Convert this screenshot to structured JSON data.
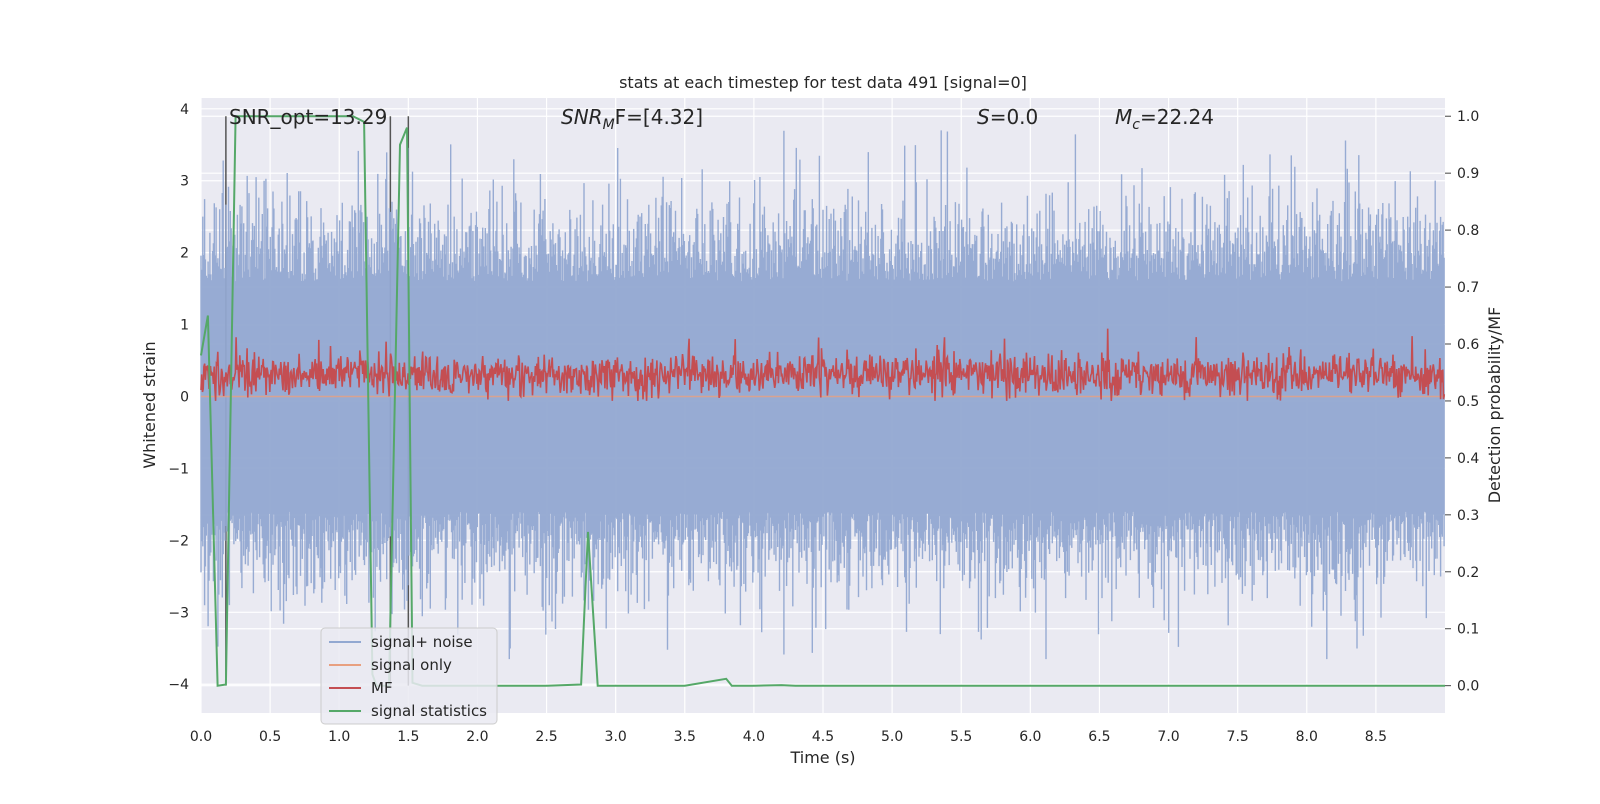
{
  "chart_data": {
    "type": "line",
    "title": "stats at each timestep for test data 491 [signal=0]",
    "xlabel": "Time (s)",
    "ylabel_left": "Whitened strain",
    "ylabel_right": "Detection probability/MF",
    "xlim": [
      0.0,
      9.0
    ],
    "ylim_left": [
      -4.4,
      4.15
    ],
    "ylim_right": [
      -0.048,
      1.032
    ],
    "xticks": [
      "0.0",
      "0.5",
      "1.0",
      "1.5",
      "2.0",
      "2.5",
      "3.0",
      "3.5",
      "4.0",
      "4.5",
      "5.0",
      "5.5",
      "6.0",
      "6.5",
      "7.0",
      "7.5",
      "8.0",
      "8.5"
    ],
    "yticks_left": [
      "−4",
      "−3",
      "−2",
      "−1",
      "0",
      "1",
      "2",
      "3",
      "4"
    ],
    "yticks_right": [
      "0.0",
      "0.1",
      "0.2",
      "0.3",
      "0.4",
      "0.5",
      "0.6",
      "0.7",
      "0.8",
      "0.9",
      "1.0"
    ],
    "grid": true,
    "legend_position": "lower-left",
    "annotations": {
      "snr_opt": "SNR_opt=13.29",
      "snr_mf_main": "SNR",
      "snr_mf_sub": "M",
      "snr_mf_rest": "F=[4.32]",
      "s_italic": "S",
      "s_rest": "=0.0",
      "mc_main": "M",
      "mc_sub": "c",
      "mc_rest": "=22.24"
    },
    "vertical_markers_x": [
      0.18,
      1.37,
      1.5
    ],
    "series": [
      {
        "name": "signal+ noise",
        "color": "#92a8d1",
        "axis": "left",
        "description_values": "whitened strain noise, approx. range -3.6 to 3.7"
      },
      {
        "name": "signal only",
        "color": "#e8a080",
        "axis": "left",
        "values": "zero"
      },
      {
        "name": "MF",
        "color": "#c44e52",
        "axis": "right",
        "range": [
          0.5,
          0.64
        ]
      },
      {
        "name": "signal statistics",
        "color": "#55a868",
        "axis": "right",
        "x": [
          0.0,
          0.05,
          0.12,
          0.18,
          0.25,
          1.0,
          1.1,
          1.18,
          1.24,
          1.27,
          1.36,
          1.44,
          1.49,
          1.53,
          1.6,
          2.0,
          2.5,
          2.75,
          2.8,
          2.87,
          3.0,
          3.5,
          3.8,
          3.84,
          3.9,
          4.0,
          4.2,
          4.3,
          5.0,
          6.0,
          7.0,
          8.0,
          9.0
        ],
        "values": [
          0.58,
          0.65,
          0.0,
          0.002,
          1.0,
          1.0,
          1.0,
          0.99,
          0.02,
          0.0,
          0.0,
          0.95,
          0.98,
          0.005,
          0.0,
          0.0,
          0.0,
          0.002,
          0.27,
          0.0,
          0.0,
          0.0,
          0.012,
          0.0,
          0.0,
          0.0,
          0.001,
          0.0,
          0.0,
          0.0,
          0.0,
          0.0,
          0.0
        ]
      }
    ]
  }
}
